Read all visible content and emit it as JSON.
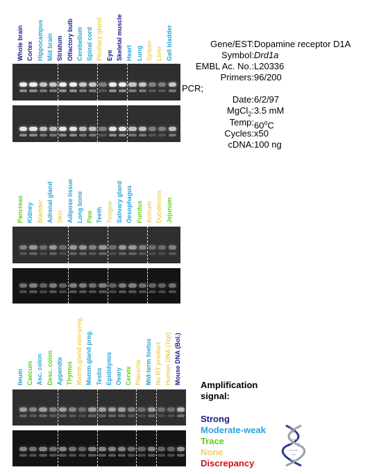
{
  "colors": {
    "strong": "#1a1a8c",
    "moderate": "#2aa3d8",
    "trace": "#66cc22",
    "none": "#f0d060",
    "discrepancy": "#cc1111"
  },
  "panel1": {
    "lanes": [
      {
        "label": "Whole brain",
        "level": "strong"
      },
      {
        "label": "Cortex",
        "level": "strong"
      },
      {
        "label": "Hippocampus",
        "level": "moderate"
      },
      {
        "label": "Mid brain",
        "level": "moderate"
      },
      {
        "label": "Striatum",
        "level": "strong"
      },
      {
        "label": "Olfactory bulb",
        "level": "strong"
      },
      {
        "label": "Cerebellum",
        "level": "moderate"
      },
      {
        "label": "Spinal cord",
        "level": "moderate"
      },
      {
        "label": "Pituitary gland",
        "level": "none"
      },
      {
        "label": "Eye",
        "level": "strong"
      },
      {
        "label": "Skeletal muscle",
        "level": "strong"
      },
      {
        "label": "Heart",
        "level": "moderate"
      },
      {
        "label": "Lung",
        "level": "moderate"
      },
      {
        "label": "Spleen",
        "level": "none"
      },
      {
        "label": "Liver",
        "level": "none"
      },
      {
        "label": "Gall bladder",
        "level": "moderate"
      }
    ]
  },
  "panel2": {
    "lanes": [
      {
        "label": "Pancreas",
        "level": "trace"
      },
      {
        "label": "Kidney",
        "level": "moderate"
      },
      {
        "label": "Bladder",
        "level": "none"
      },
      {
        "label": "Adrenal gland",
        "level": "moderate"
      },
      {
        "label": "Skin",
        "level": "none"
      },
      {
        "label": "Adipose tissue",
        "level": "moderate"
      },
      {
        "label": "Long bone",
        "level": "moderate"
      },
      {
        "label": "Paw",
        "level": "trace"
      },
      {
        "label": "Teeth",
        "level": "moderate"
      },
      {
        "label": "Tongue",
        "level": "none"
      },
      {
        "label": "Salivary gland",
        "level": "moderate"
      },
      {
        "label": "Oesophagus",
        "level": "moderate"
      },
      {
        "label": "Fundus",
        "level": "trace"
      },
      {
        "label": "Antrum",
        "level": "none"
      },
      {
        "label": "Duodenum",
        "level": "none"
      },
      {
        "label": "Jejunum",
        "level": "trace"
      }
    ]
  },
  "panel3": {
    "lanes": [
      {
        "label": "Ileum",
        "level": "moderate"
      },
      {
        "label": "Caecum",
        "level": "trace"
      },
      {
        "label": "Asc. colon",
        "level": "moderate"
      },
      {
        "label": "Desc. colon",
        "level": "trace"
      },
      {
        "label": "Appendix",
        "level": "moderate"
      },
      {
        "label": "Thymus",
        "level": "trace"
      },
      {
        "label": "Mamm.gland non-preg.",
        "level": "none"
      },
      {
        "label": "Mamm.gland preg.",
        "level": "moderate"
      },
      {
        "label": "Testis",
        "level": "moderate"
      },
      {
        "label": "Epididymis",
        "level": "moderate"
      },
      {
        "label": "Ovary",
        "level": "moderate"
      },
      {
        "label": "Cervix",
        "level": "trace"
      },
      {
        "label": "Placenta",
        "level": "none"
      },
      {
        "label": "Mid-term foetus",
        "level": "moderate"
      },
      {
        "label": "No RT product",
        "level": "none"
      },
      {
        "label": "Human DNA (Top)",
        "level": "none"
      },
      {
        "label": "Mouse DNA (Bol.)",
        "level": "strong"
      }
    ]
  },
  "info": {
    "gene_label": "Gene/EST:",
    "gene_value": "Dopamine receptor D1A",
    "symbol_label": "Symbol:",
    "symbol_value": "Drd1a",
    "embl_label": "EMBL Ac. No.:",
    "embl_value": "L20336",
    "primers_label": "Primers:",
    "primers_value": "96/200",
    "pcr_label": "PCR;",
    "date_label": "Date:",
    "date_value": "6/2/97",
    "mgcl_label": "MgCl",
    "mgcl_sub": "2",
    "mgcl_colon": ":",
    "mgcl_value": "3.5 mM",
    "temp_label": "Temp:",
    "temp_value": "60",
    "temp_sup": "o",
    "temp_unit": "C",
    "cycles_label": "Cycles:",
    "cycles_value": "x50",
    "cdna_label": "cDNA:",
    "cdna_value": "100 ng"
  },
  "legend": {
    "title_line1": "Amplification",
    "title_line2": "signal:",
    "strong": "Strong",
    "moderate": "Moderate-weak",
    "trace": "Trace",
    "none": "None",
    "discrepancy": "Discrepancy"
  }
}
